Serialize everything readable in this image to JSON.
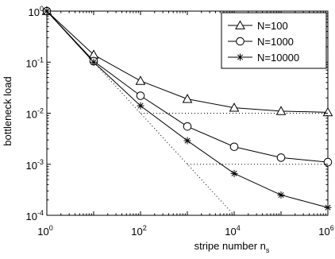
{
  "chart_data": {
    "type": "line",
    "title": "",
    "xlabel": "stripe number n",
    "xlabel_subscript": "s",
    "ylabel": "bottleneck load",
    "xscale": "log",
    "yscale": "log",
    "xlim": [
      1,
      1000000
    ],
    "ylim": [
      0.0001,
      1
    ],
    "xticks": [
      {
        "base": "10",
        "exp": "0"
      },
      {
        "base": "10",
        "exp": "2"
      },
      {
        "base": "10",
        "exp": "4"
      },
      {
        "base": "10",
        "exp": "6"
      }
    ],
    "yticks": [
      {
        "base": "10",
        "exp": "0"
      },
      {
        "base": "10",
        "exp": "-1"
      },
      {
        "base": "10",
        "exp": "-2"
      },
      {
        "base": "10",
        "exp": "-3"
      },
      {
        "base": "10",
        "exp": "-4"
      }
    ],
    "grid": false,
    "legend_position": "top-right",
    "x": [
      1,
      10,
      100,
      1000,
      10000,
      100000,
      1000000
    ],
    "series": [
      {
        "name": "N=100",
        "marker": "triangle",
        "values": [
          1,
          0.14,
          0.043,
          0.019,
          0.0128,
          0.011,
          0.0104
        ]
      },
      {
        "name": "N=1000",
        "marker": "circle",
        "values": [
          1,
          0.105,
          0.022,
          0.0055,
          0.0022,
          0.00135,
          0.0011
        ]
      },
      {
        "name": "N=10000",
        "marker": "asterisk",
        "values": [
          1,
          0.1,
          0.014,
          0.0029,
          0.00066,
          0.00025,
          0.000142
        ]
      }
    ],
    "reference_lines": [
      {
        "style": "dotted",
        "x": [
          1,
          10000
        ],
        "y": [
          1,
          0.0001
        ]
      },
      {
        "style": "dotted",
        "x": [
          100,
          1000000
        ],
        "y": [
          0.01,
          0.01
        ]
      },
      {
        "style": "dotted",
        "x": [
          1000,
          1000000
        ],
        "y": [
          0.001,
          0.001
        ]
      }
    ]
  }
}
